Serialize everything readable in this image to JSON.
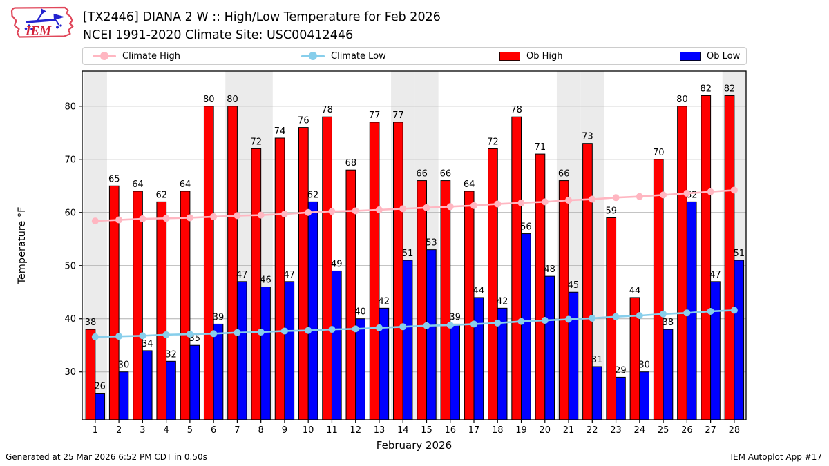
{
  "header": {
    "logo_text": "IEM",
    "title_line1": "[TX2446] DIANA 2 W :: High/Low Temperature for Feb 2026",
    "title_line2": "NCEI 1991-2020 Climate Site: USC00412446"
  },
  "legend": {
    "items": [
      {
        "label": "Climate High",
        "type": "line",
        "color": "#ffb6c1"
      },
      {
        "label": "Climate Low",
        "type": "line",
        "color": "#87ceeb"
      },
      {
        "label": "Ob High",
        "type": "patch",
        "color": "#ff0000"
      },
      {
        "label": "Ob Low",
        "type": "patch",
        "color": "#0000ff"
      }
    ]
  },
  "footer": {
    "left": "Generated at 25 Mar 2026 6:52 PM CDT in 0.50s",
    "right": "IEM Autoplot App #17"
  },
  "chart_data": {
    "type": "bar",
    "title": "[TX2446] DIANA 2 W :: High/Low Temperature for Feb 2026",
    "subtitle": "NCEI 1991-2020 Climate Site: USC00412446",
    "xlabel": "February 2026",
    "ylabel": "Temperature °F",
    "categories": [
      1,
      2,
      3,
      4,
      5,
      6,
      7,
      8,
      9,
      10,
      11,
      12,
      13,
      14,
      15,
      16,
      17,
      18,
      19,
      20,
      21,
      22,
      23,
      24,
      25,
      26,
      27,
      28
    ],
    "series": [
      {
        "name": "Ob High",
        "type": "bar",
        "color": "#ff0000",
        "values": [
          38,
          65,
          64,
          62,
          64,
          80,
          80,
          72,
          74,
          76,
          78,
          68,
          77,
          77,
          66,
          66,
          64,
          72,
          78,
          71,
          66,
          73,
          59,
          44,
          70,
          80,
          82,
          82
        ]
      },
      {
        "name": "Ob Low",
        "type": "bar",
        "color": "#0000ff",
        "values": [
          26,
          30,
          34,
          32,
          35,
          39,
          47,
          46,
          47,
          62,
          49,
          40,
          42,
          51,
          53,
          39,
          44,
          42,
          56,
          48,
          45,
          31,
          29,
          30,
          38,
          62,
          47,
          51
        ]
      },
      {
        "name": "Climate High",
        "type": "line",
        "color": "#ffb6c1",
        "values": [
          58.4,
          58.6,
          58.8,
          58.9,
          59.0,
          59.2,
          59.4,
          59.5,
          59.7,
          60.0,
          60.2,
          60.3,
          60.5,
          60.7,
          60.9,
          61.1,
          61.3,
          61.6,
          61.8,
          62.0,
          62.3,
          62.5,
          62.8,
          63.0,
          63.3,
          63.6,
          63.9,
          64.2
        ]
      },
      {
        "name": "Climate Low",
        "type": "line",
        "color": "#87ceeb",
        "values": [
          36.6,
          36.7,
          36.8,
          37.0,
          37.1,
          37.2,
          37.4,
          37.5,
          37.7,
          37.8,
          38.0,
          38.1,
          38.3,
          38.5,
          38.7,
          38.8,
          39.0,
          39.2,
          39.5,
          39.7,
          39.9,
          40.1,
          40.4,
          40.6,
          40.9,
          41.1,
          41.4,
          41.6
        ]
      }
    ],
    "ylim": [
      21.0,
      86.6
    ],
    "yticks": [
      30,
      40,
      50,
      60,
      70,
      80
    ],
    "xlim": [
      0.45,
      28.5
    ],
    "weekend_shading_days": [
      1,
      7,
      8,
      14,
      15,
      21,
      22,
      28
    ],
    "grid": true,
    "legend_position": "top",
    "style": {
      "weekend_band": "#ebebeb",
      "gridline": "#b0b0b0",
      "frame": "#000000",
      "bar_edge": "#000000",
      "label_fontsize": 13,
      "tick_fontsize": 13
    }
  }
}
